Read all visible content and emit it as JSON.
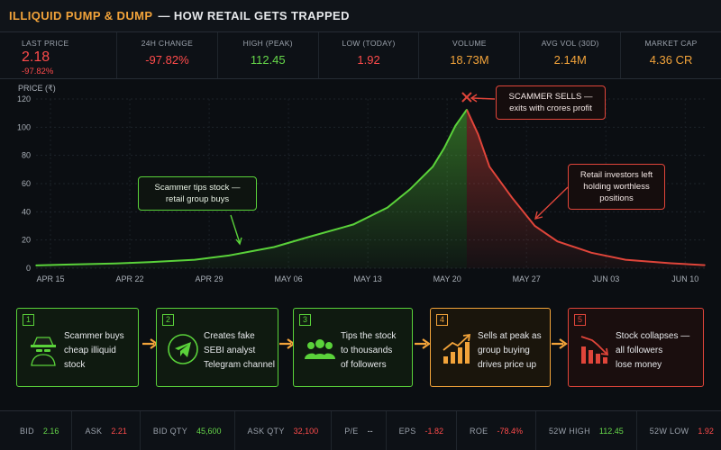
{
  "header": {
    "title_accent": "ILLIQUID PUMP & DUMP",
    "title_rest": "— HOW RETAIL GETS TRAPPED"
  },
  "stats": {
    "last_price": {
      "label": "LAST PRICE",
      "value": "2.18",
      "change": "-97.82%"
    },
    "items": [
      {
        "label": "24H CHANGE",
        "value": "-97.82%",
        "color": "#ff4b4b"
      },
      {
        "label": "HIGH (PEAK)",
        "value": "112.45",
        "color": "#66d84a"
      },
      {
        "label": "LOW (TODAY)",
        "value": "1.92",
        "color": "#ff4b4b"
      },
      {
        "label": "VOLUME",
        "value": "18.73M",
        "color": "#f2a33a"
      },
      {
        "label": "AVG VOL (30D)",
        "value": "2.14M",
        "color": "#f2a33a"
      },
      {
        "label": "MARKET CAP",
        "value": "4.36 CR",
        "color": "#f2a33a"
      }
    ]
  },
  "chart_data": {
    "type": "area",
    "ylabel": "PRICE (₹)",
    "ylim": [
      0,
      120
    ],
    "yticks": [
      0,
      20,
      40,
      60,
      80,
      100,
      120
    ],
    "xtick_labels": [
      "APR 15",
      "APR 22",
      "APR 29",
      "MAY 06",
      "MAY 13",
      "MAY 20",
      "MAY 27",
      "JUN 03",
      "JUN 10"
    ],
    "x_start": "2024-04-15",
    "x_end": "2024-06-13",
    "grid": true,
    "series": [
      {
        "points": [
          [
            "2024-04-15",
            2
          ],
          [
            "2024-04-18",
            2.6
          ],
          [
            "2024-04-22",
            3.4
          ],
          [
            "2024-04-25",
            4.3
          ],
          [
            "2024-04-29",
            6
          ],
          [
            "2024-05-02",
            9
          ],
          [
            "2024-05-06",
            15
          ],
          [
            "2024-05-09",
            22
          ],
          [
            "2024-05-13",
            31
          ],
          [
            "2024-05-16",
            43
          ],
          [
            "2024-05-18",
            56
          ],
          [
            "2024-05-20",
            72
          ],
          [
            "2024-05-21",
            85
          ],
          [
            "2024-05-22",
            101
          ],
          [
            "2024-05-23",
            112.45
          ],
          [
            "2024-05-24",
            95
          ],
          [
            "2024-05-25",
            72
          ],
          [
            "2024-05-27",
            50
          ],
          [
            "2024-05-29",
            30
          ],
          [
            "2024-05-31",
            19
          ],
          [
            "2024-06-03",
            11
          ],
          [
            "2024-06-06",
            6
          ],
          [
            "2024-06-10",
            3.5
          ],
          [
            "2024-06-13",
            2.2
          ]
        ],
        "pump_color": "#5ad23a",
        "dump_color": "#e0453a"
      }
    ],
    "annotations": [
      {
        "text_lines": [
          "Scammer tips stock —",
          "retail group buys"
        ],
        "color": "#5ad23a"
      },
      {
        "text_lines": [
          "SCAMMER SELLS —",
          "exits with crores profit"
        ],
        "color": "#e0453a"
      },
      {
        "text_lines": [
          "Retail investors left",
          "holding worthless",
          "positions"
        ],
        "color": "#e0453a"
      }
    ]
  },
  "steps": [
    {
      "num": "1",
      "lines": [
        "Scammer buys",
        "cheap illiquid",
        "stock"
      ],
      "color": "#5ad23a",
      "icon": "hacker-icon"
    },
    {
      "num": "2",
      "lines": [
        "Creates fake",
        "SEBI analyst",
        "Telegram channel"
      ],
      "color": "#5ad23a",
      "icon": "telegram-icon"
    },
    {
      "num": "3",
      "lines": [
        "Tips the stock",
        "to thousands",
        "of followers"
      ],
      "color": "#5ad23a",
      "icon": "users-icon"
    },
    {
      "num": "4",
      "lines": [
        "Sells at peak as",
        "group buying",
        "drives price up"
      ],
      "color": "#f2a33a",
      "icon": "bars-up-icon"
    },
    {
      "num": "5",
      "lines": [
        "Stock collapses —",
        "all followers",
        "lose money"
      ],
      "color": "#e0453a",
      "icon": "bars-down-icon"
    }
  ],
  "ticker": [
    {
      "label": "BID",
      "value": "2.16",
      "color": "#66d84a"
    },
    {
      "label": "ASK",
      "value": "2.21",
      "color": "#ff4b4b"
    },
    {
      "label": "BID QTY",
      "value": "45,600",
      "color": "#66d84a"
    },
    {
      "label": "ASK QTY",
      "value": "32,100",
      "color": "#ff4b4b"
    },
    {
      "label": "P/E",
      "value": "--",
      "color": "#c9ced6"
    },
    {
      "label": "EPS",
      "value": "-1.82",
      "color": "#ff4b4b"
    },
    {
      "label": "ROE",
      "value": "-78.4%",
      "color": "#ff4b4b"
    },
    {
      "label": "52W HIGH",
      "value": "112.45",
      "color": "#66d84a"
    },
    {
      "label": "52W LOW",
      "value": "1.92",
      "color": "#ff4b4b"
    }
  ]
}
